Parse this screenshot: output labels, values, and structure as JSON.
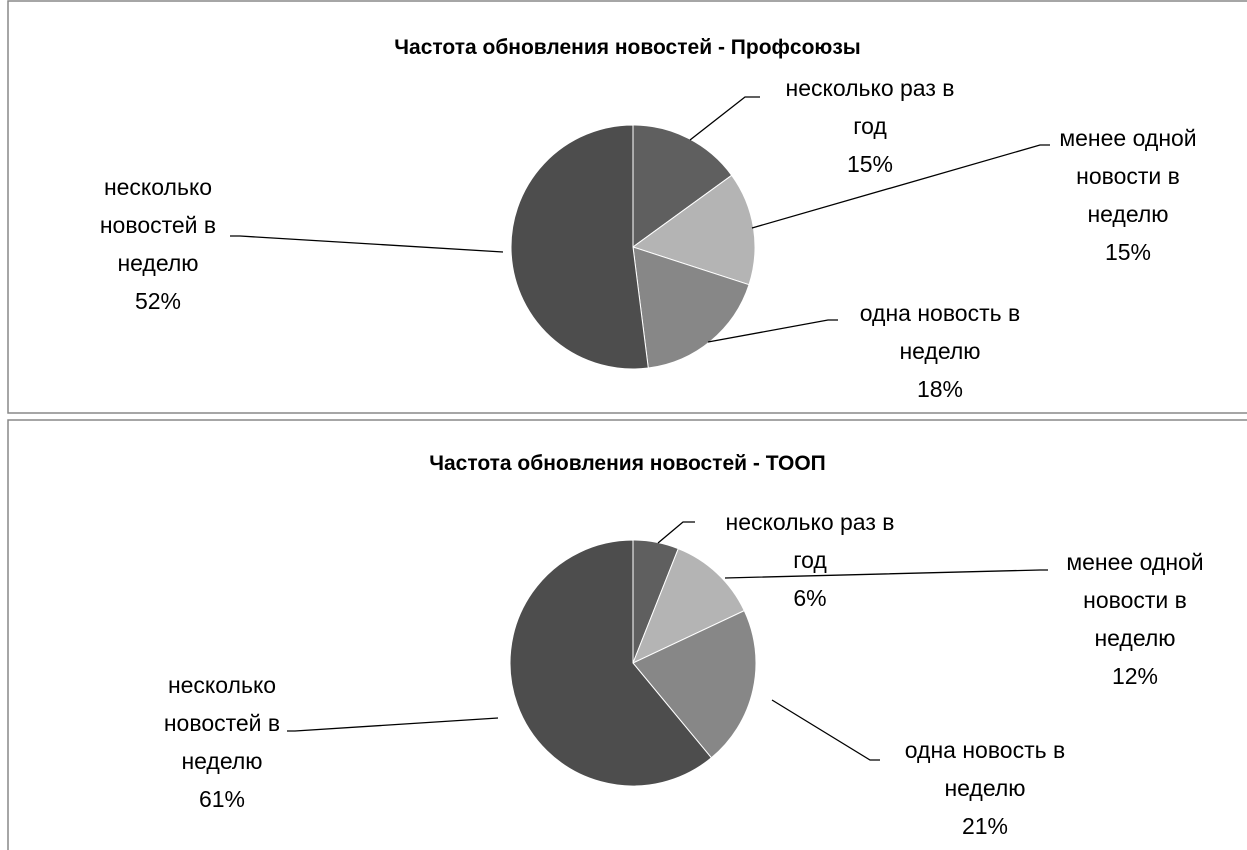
{
  "chart_data": [
    {
      "type": "pie",
      "title": "Частота обновления новостей - Профсоюзы",
      "categories": [
        "несколько раз в год",
        "менее одной новости в неделю",
        "одна новость в неделю",
        "несколько новостей в неделю"
      ],
      "values": [
        15,
        15,
        18,
        52
      ],
      "value_labels": [
        "15%",
        "15%",
        "18%",
        "52%"
      ],
      "colors": [
        "#5f5f5f",
        "#b4b4b4",
        "#878787",
        "#4d4d4d"
      ]
    },
    {
      "type": "pie",
      "title": "Частота обновления новостей - ТООП",
      "categories": [
        "несколько раз в год",
        "менее одной новости в неделю",
        "одна новость в неделю",
        "несколько новостей в неделю"
      ],
      "values": [
        6,
        12,
        21,
        61
      ],
      "value_labels": [
        "6%",
        "12%",
        "21%",
        "61%"
      ],
      "colors": [
        "#5f5f5f",
        "#b4b4b4",
        "#878787",
        "#4d4d4d"
      ]
    }
  ]
}
